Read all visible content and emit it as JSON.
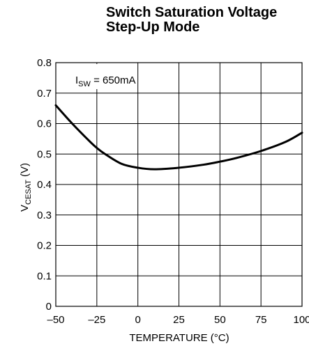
{
  "chart_data": {
    "type": "line",
    "title_lines": [
      "Switch Saturation Voltage",
      "Step-Up Mode"
    ],
    "ylabel_main": "V",
    "ylabel_sub": "CESAT",
    "ylabel_unit": " (V)",
    "xlabel": "TEMPERATURE (°C)",
    "annotation_main": "I",
    "annotation_sub": "SW",
    "annotation_rest": " = 650mA",
    "xlim": [
      -50,
      100
    ],
    "ylim": [
      0,
      0.8
    ],
    "x_ticks": [
      -50,
      -25,
      0,
      25,
      50,
      75,
      100
    ],
    "x_tick_labels": [
      "–50",
      "–25",
      "0",
      "25",
      "50",
      "75",
      "100"
    ],
    "y_ticks": [
      0,
      0.1,
      0.2,
      0.3,
      0.4,
      0.5,
      0.6,
      0.7,
      0.8
    ],
    "y_tick_labels": [
      "0",
      "0.1",
      "0.2",
      "0.3",
      "0.4",
      "0.5",
      "0.6",
      "0.7",
      "0.8"
    ],
    "grid": true,
    "series": [
      {
        "x": [
          -50,
          -40,
          -30,
          -25,
          -20,
          -10,
          0,
          10,
          25,
          40,
          50,
          60,
          75,
          90,
          100
        ],
        "values": [
          0.66,
          0.6,
          0.545,
          0.52,
          0.5,
          0.468,
          0.455,
          0.45,
          0.455,
          0.465,
          0.475,
          0.487,
          0.51,
          0.54,
          0.57
        ]
      }
    ]
  }
}
